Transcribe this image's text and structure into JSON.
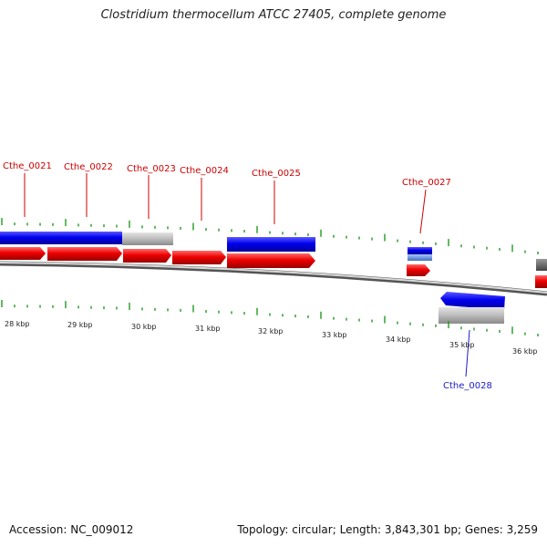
{
  "title": "Clostridium thermocellum ATCC 27405, complete genome",
  "footer": {
    "accession_label": "Accession:",
    "accession": "NC_009012",
    "topology_label": "Topology:",
    "topology": "circular",
    "length_label": "Length:",
    "length": "3,843,301 bp",
    "genes_label": "Genes:",
    "genes": "3,259"
  },
  "colors": {
    "forward_gene": "#0000ee",
    "cds": "#ee0000",
    "pseudo": "#bbbbbb",
    "tick": "#229922",
    "label_fwd": "#cc0000",
    "label_rev": "#1a1acc",
    "backbone": "#888888"
  },
  "gene_labels": {
    "top": [
      "Cthe_0021",
      "Cthe_0022",
      "Cthe_0023",
      "Cthe_0024",
      "Cthe_0025",
      "Cthe_0027"
    ],
    "bottom": [
      "Cthe_0028"
    ]
  },
  "scale_labels": [
    "28 kbp",
    "29 kbp",
    "30 kbp",
    "31 kbp",
    "32 kbp",
    "33 kbp",
    "34 kbp",
    "35 kbp",
    "36 kbp"
  ]
}
